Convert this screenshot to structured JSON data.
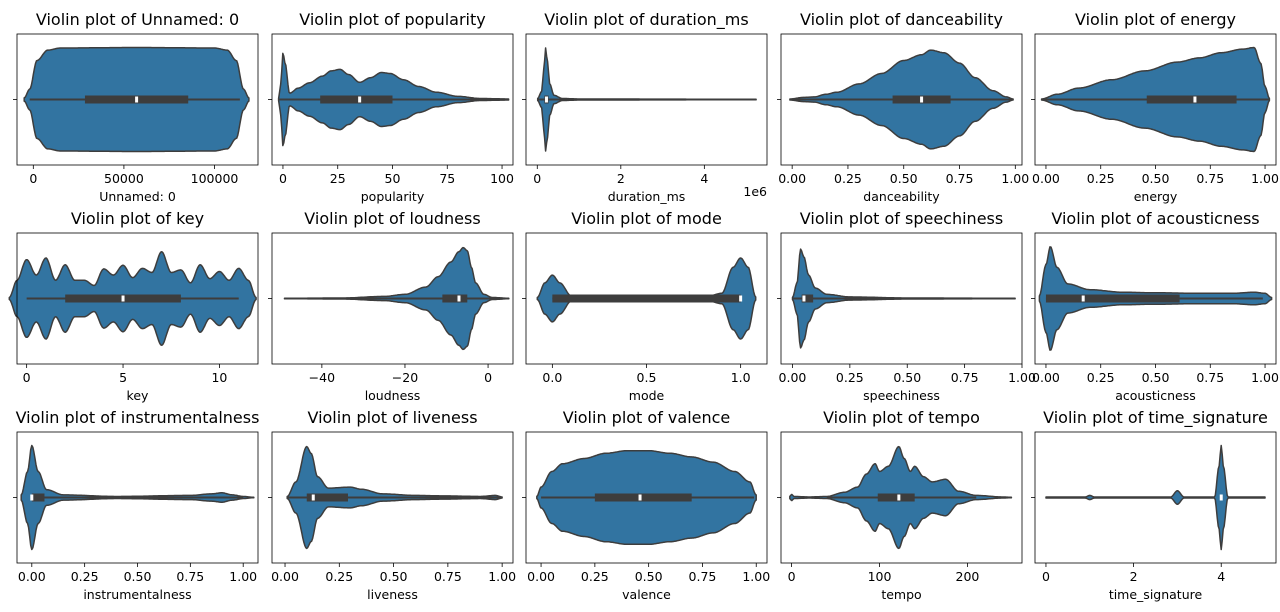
{
  "colors": {
    "violin_fill": "#3274a1",
    "violin_edge": "#3d3d3d",
    "box_fill": "#3d3d3d",
    "median": "#ffffff"
  },
  "chart_data": [
    {
      "type": "violin",
      "title": "Violin plot of Unnamed: 0",
      "xlabel": "Unnamed: 0",
      "xlim": [
        -9000,
        124000
      ],
      "ticks": [
        0,
        50000,
        100000
      ],
      "tick_labels": [
        "0",
        "50000",
        "100000"
      ],
      "whiskers": [
        -2000,
        114000
      ],
      "box": [
        28500,
        85500
      ],
      "median": 57000,
      "profile": [
        [
          -5000,
          0.03
        ],
        [
          -2000,
          0.2
        ],
        [
          2000,
          0.75
        ],
        [
          8000,
          0.95
        ],
        [
          15000,
          0.99
        ],
        [
          57000,
          1.0
        ],
        [
          100000,
          0.99
        ],
        [
          107000,
          0.95
        ],
        [
          112000,
          0.75
        ],
        [
          116000,
          0.2
        ],
        [
          119000,
          0.03
        ]
      ]
    },
    {
      "type": "violin",
      "title": "Violin plot of popularity",
      "xlabel": "popularity",
      "xlim": [
        -5,
        105
      ],
      "ticks": [
        0,
        25,
        50,
        75,
        100
      ],
      "tick_labels": [
        "0",
        "25",
        "50",
        "75",
        "100"
      ],
      "whiskers": [
        -2,
        103
      ],
      "box": [
        17,
        50
      ],
      "median": 35,
      "profile": [
        [
          -2,
          0.02
        ],
        [
          -1,
          0.3
        ],
        [
          0,
          0.9
        ],
        [
          1,
          0.7
        ],
        [
          3,
          0.12
        ],
        [
          7,
          0.22
        ],
        [
          12,
          0.32
        ],
        [
          18,
          0.45
        ],
        [
          22,
          0.55
        ],
        [
          26,
          0.58
        ],
        [
          30,
          0.48
        ],
        [
          35,
          0.33
        ],
        [
          40,
          0.42
        ],
        [
          45,
          0.52
        ],
        [
          49,
          0.5
        ],
        [
          55,
          0.38
        ],
        [
          62,
          0.25
        ],
        [
          70,
          0.14
        ],
        [
          80,
          0.06
        ],
        [
          90,
          0.02
        ],
        [
          103,
          0.01
        ]
      ]
    },
    {
      "type": "violin",
      "title": "Violin plot of duration_ms",
      "xlabel": "duration_ms",
      "offset_text": "1e6",
      "xlim": [
        -0.27,
        5.5
      ],
      "ticks": [
        0,
        2,
        4
      ],
      "tick_labels": [
        "0",
        "2",
        "4"
      ],
      "whiskers": [
        0.01,
        5.24
      ],
      "box": [
        0.17,
        0.27
      ],
      "median": 0.22,
      "profile": [
        [
          0.01,
          0.02
        ],
        [
          0.1,
          0.15
        ],
        [
          0.16,
          0.6
        ],
        [
          0.2,
          0.99
        ],
        [
          0.24,
          0.75
        ],
        [
          0.3,
          0.3
        ],
        [
          0.4,
          0.08
        ],
        [
          0.6,
          0.02
        ],
        [
          1.0,
          0.01
        ],
        [
          5.24,
          0.005
        ]
      ]
    },
    {
      "type": "violin",
      "title": "Violin plot of danceability",
      "xlabel": "danceability",
      "xlim": [
        -0.05,
        1.03
      ],
      "ticks": [
        0.0,
        0.25,
        0.5,
        0.75,
        1.0
      ],
      "tick_labels": [
        "0.00",
        "0.25",
        "0.50",
        "0.75",
        "1.00"
      ],
      "whiskers": [
        -0.01,
        0.99
      ],
      "box": [
        0.45,
        0.71
      ],
      "median": 0.58,
      "profile": [
        [
          -0.01,
          0.01
        ],
        [
          0.05,
          0.04
        ],
        [
          0.1,
          0.05
        ],
        [
          0.15,
          0.1
        ],
        [
          0.2,
          0.14
        ],
        [
          0.3,
          0.3
        ],
        [
          0.4,
          0.5
        ],
        [
          0.5,
          0.75
        ],
        [
          0.58,
          0.86
        ],
        [
          0.62,
          0.95
        ],
        [
          0.68,
          0.9
        ],
        [
          0.75,
          0.7
        ],
        [
          0.82,
          0.42
        ],
        [
          0.9,
          0.17
        ],
        [
          0.96,
          0.05
        ],
        [
          0.99,
          0.01
        ]
      ]
    },
    {
      "type": "violin",
      "title": "Violin plot of energy",
      "xlabel": "energy",
      "xlim": [
        -0.05,
        1.05
      ],
      "ticks": [
        0.0,
        0.25,
        0.5,
        0.75,
        1.0
      ],
      "tick_labels": [
        "0.00",
        "0.25",
        "0.50",
        "0.75",
        "1.00"
      ],
      "whiskers": [
        -0.02,
        1.02
      ],
      "box": [
        0.46,
        0.87
      ],
      "median": 0.68,
      "profile": [
        [
          -0.02,
          0.01
        ],
        [
          0.05,
          0.1
        ],
        [
          0.15,
          0.22
        ],
        [
          0.3,
          0.38
        ],
        [
          0.45,
          0.55
        ],
        [
          0.6,
          0.72
        ],
        [
          0.7,
          0.8
        ],
        [
          0.8,
          0.9
        ],
        [
          0.9,
          0.97
        ],
        [
          0.95,
          1.0
        ],
        [
          0.98,
          0.7
        ],
        [
          1.0,
          0.25
        ],
        [
          1.02,
          0.02
        ]
      ]
    },
    {
      "type": "violin",
      "title": "Violin plot of key",
      "xlabel": "key",
      "xlim": [
        -0.5,
        12
      ],
      "ticks": [
        0,
        5,
        10
      ],
      "tick_labels": [
        "0",
        "5",
        "10"
      ],
      "whiskers": [
        0,
        11
      ],
      "box": [
        2,
        8
      ],
      "median": 5,
      "profile": [
        [
          -0.9,
          0.02
        ],
        [
          -0.5,
          0.35
        ],
        [
          0,
          0.75
        ],
        [
          0.5,
          0.45
        ],
        [
          1,
          0.78
        ],
        [
          1.5,
          0.35
        ],
        [
          2,
          0.65
        ],
        [
          2.5,
          0.35
        ],
        [
          3,
          0.35
        ],
        [
          3.5,
          0.25
        ],
        [
          4,
          0.57
        ],
        [
          4.5,
          0.45
        ],
        [
          5,
          0.64
        ],
        [
          5.5,
          0.4
        ],
        [
          6,
          0.58
        ],
        [
          6.5,
          0.5
        ],
        [
          7,
          0.9
        ],
        [
          7.5,
          0.5
        ],
        [
          8,
          0.55
        ],
        [
          8.5,
          0.3
        ],
        [
          9,
          0.65
        ],
        [
          9.5,
          0.38
        ],
        [
          10,
          0.52
        ],
        [
          10.5,
          0.35
        ],
        [
          11,
          0.58
        ],
        [
          11.5,
          0.35
        ],
        [
          11.9,
          0.02
        ]
      ]
    },
    {
      "type": "violin",
      "title": "Violin plot of loudness",
      "xlabel": "loudness",
      "xlim": [
        -52,
        6
      ],
      "ticks": [
        -40,
        -20,
        0
      ],
      "tick_labels": [
        "−40",
        "−20",
        "0"
      ],
      "whiskers": [
        -49,
        5
      ],
      "box": [
        -11,
        -5
      ],
      "median": -7,
      "profile": [
        [
          -49,
          0.005
        ],
        [
          -35,
          0.01
        ],
        [
          -25,
          0.04
        ],
        [
          -20,
          0.08
        ],
        [
          -15,
          0.22
        ],
        [
          -12,
          0.42
        ],
        [
          -9,
          0.7
        ],
        [
          -7,
          0.9
        ],
        [
          -6,
          0.98
        ],
        [
          -5,
          0.92
        ],
        [
          -4,
          0.6
        ],
        [
          -3,
          0.3
        ],
        [
          -1,
          0.08
        ],
        [
          1,
          0.02
        ],
        [
          5,
          0.005
        ]
      ]
    },
    {
      "type": "violin",
      "title": "Violin plot of mode",
      "xlabel": "mode",
      "xlim": [
        -0.14,
        1.14
      ],
      "ticks": [
        0.0,
        0.5,
        1.0
      ],
      "tick_labels": [
        "0.0",
        "0.5",
        "1.0"
      ],
      "whiskers": [
        0,
        1
      ],
      "box": [
        0,
        1
      ],
      "median": 1,
      "profile": [
        [
          -0.08,
          0.02
        ],
        [
          -0.04,
          0.3
        ],
        [
          0,
          0.45
        ],
        [
          0.04,
          0.3
        ],
        [
          0.1,
          0.05
        ],
        [
          0.2,
          0.01
        ],
        [
          0.8,
          0.01
        ],
        [
          0.9,
          0.1
        ],
        [
          0.96,
          0.6
        ],
        [
          1,
          0.78
        ],
        [
          1.04,
          0.6
        ],
        [
          1.08,
          0.03
        ]
      ]
    },
    {
      "type": "violin",
      "title": "Violin plot of speechiness",
      "xlabel": "speechiness",
      "xlim": [
        -0.05,
        1.0
      ],
      "ticks": [
        0.0,
        0.25,
        0.5,
        0.75,
        1.0
      ],
      "tick_labels": [
        "0.00",
        "0.25",
        "0.50",
        "0.75",
        "1.00"
      ],
      "whiskers": [
        0.0,
        0.97
      ],
      "box": [
        0.04,
        0.09
      ],
      "median": 0.05,
      "profile": [
        [
          0.0,
          0.02
        ],
        [
          0.02,
          0.3
        ],
        [
          0.035,
          0.95
        ],
        [
          0.05,
          0.8
        ],
        [
          0.07,
          0.45
        ],
        [
          0.1,
          0.2
        ],
        [
          0.15,
          0.08
        ],
        [
          0.25,
          0.03
        ],
        [
          0.5,
          0.01
        ],
        [
          0.97,
          0.005
        ]
      ]
    },
    {
      "type": "violin",
      "title": "Violin plot of acousticness",
      "xlabel": "acousticness",
      "xlim": [
        -0.05,
        1.05
      ],
      "ticks": [
        0.0,
        0.25,
        0.5,
        0.75,
        1.0
      ],
      "tick_labels": [
        "0.00",
        "0.25",
        "0.50",
        "0.75",
        "1.00"
      ],
      "whiskers": [
        0.0,
        0.99
      ],
      "box": [
        0.0,
        0.61
      ],
      "median": 0.17,
      "profile": [
        [
          -0.03,
          0.05
        ],
        [
          0,
          0.65
        ],
        [
          0.02,
          1.0
        ],
        [
          0.05,
          0.6
        ],
        [
          0.1,
          0.28
        ],
        [
          0.2,
          0.17
        ],
        [
          0.35,
          0.12
        ],
        [
          0.5,
          0.11
        ],
        [
          0.7,
          0.1
        ],
        [
          0.85,
          0.1
        ],
        [
          0.95,
          0.12
        ],
        [
          1.0,
          0.1
        ],
        [
          1.03,
          0.02
        ]
      ]
    },
    {
      "type": "violin",
      "title": "Violin plot of instrumentalness",
      "xlabel": "instrumentalness",
      "xlim": [
        -0.07,
        1.07
      ],
      "ticks": [
        0.0,
        0.25,
        0.5,
        0.75,
        1.0
      ],
      "tick_labels": [
        "0.00",
        "0.25",
        "0.50",
        "0.75",
        "1.00"
      ],
      "whiskers": [
        0.0,
        1.0
      ],
      "box": [
        0.0,
        0.06
      ],
      "median": 0.0,
      "profile": [
        [
          -0.05,
          0.05
        ],
        [
          -0.02,
          0.5
        ],
        [
          0,
          1.0
        ],
        [
          0.03,
          0.5
        ],
        [
          0.07,
          0.15
        ],
        [
          0.15,
          0.05
        ],
        [
          0.4,
          0.02
        ],
        [
          0.75,
          0.04
        ],
        [
          0.85,
          0.07
        ],
        [
          0.9,
          0.09
        ],
        [
          0.95,
          0.05
        ],
        [
          1.0,
          0.02
        ],
        [
          1.05,
          0.005
        ]
      ]
    },
    {
      "type": "violin",
      "title": "Violin plot of liveness",
      "xlabel": "liveness",
      "xlim": [
        -0.06,
        1.05
      ],
      "ticks": [
        0.0,
        0.25,
        0.5,
        0.75,
        1.0
      ],
      "tick_labels": [
        "0.00",
        "0.25",
        "0.50",
        "0.75",
        "1.00"
      ],
      "whiskers": [
        0.01,
        1.0
      ],
      "box": [
        0.1,
        0.29
      ],
      "median": 0.13,
      "profile": [
        [
          0.01,
          0.02
        ],
        [
          0.05,
          0.3
        ],
        [
          0.1,
          0.98
        ],
        [
          0.12,
          0.85
        ],
        [
          0.15,
          0.4
        ],
        [
          0.2,
          0.18
        ],
        [
          0.3,
          0.2
        ],
        [
          0.35,
          0.16
        ],
        [
          0.45,
          0.07
        ],
        [
          0.6,
          0.04
        ],
        [
          0.75,
          0.03
        ],
        [
          0.9,
          0.02
        ],
        [
          0.97,
          0.04
        ],
        [
          1.0,
          0.01
        ]
      ]
    },
    {
      "type": "violin",
      "title": "Violin plot of valence",
      "xlabel": "valence",
      "xlim": [
        -0.07,
        1.05
      ],
      "ticks": [
        0.0,
        0.25,
        0.5,
        0.75,
        1.0
      ],
      "tick_labels": [
        "0.00",
        "0.25",
        "0.50",
        "0.75",
        "1.00"
      ],
      "whiskers": [
        0.0,
        0.99
      ],
      "box": [
        0.25,
        0.7
      ],
      "median": 0.46,
      "profile": [
        [
          -0.02,
          0.02
        ],
        [
          0.0,
          0.2
        ],
        [
          0.05,
          0.5
        ],
        [
          0.1,
          0.65
        ],
        [
          0.2,
          0.75
        ],
        [
          0.3,
          0.85
        ],
        [
          0.4,
          0.9
        ],
        [
          0.5,
          0.9
        ],
        [
          0.6,
          0.85
        ],
        [
          0.7,
          0.78
        ],
        [
          0.8,
          0.68
        ],
        [
          0.9,
          0.5
        ],
        [
          0.97,
          0.3
        ],
        [
          1.0,
          0.05
        ]
      ]
    },
    {
      "type": "violin",
      "title": "Violin plot of tempo",
      "xlabel": "tempo",
      "xlim": [
        -12,
        262
      ],
      "ticks": [
        0,
        100,
        200
      ],
      "tick_labels": [
        "0",
        "100",
        "200"
      ],
      "whiskers": [
        40,
        210
      ],
      "box": [
        98,
        140
      ],
      "median": 122,
      "profile": [
        [
          -2,
          0.02
        ],
        [
          0,
          0.06
        ],
        [
          3,
          0.02
        ],
        [
          20,
          0.01
        ],
        [
          40,
          0.02
        ],
        [
          60,
          0.1
        ],
        [
          75,
          0.2
        ],
        [
          85,
          0.45
        ],
        [
          95,
          0.65
        ],
        [
          100,
          0.5
        ],
        [
          110,
          0.6
        ],
        [
          122,
          0.98
        ],
        [
          128,
          0.75
        ],
        [
          135,
          0.5
        ],
        [
          140,
          0.6
        ],
        [
          150,
          0.4
        ],
        [
          160,
          0.3
        ],
        [
          175,
          0.35
        ],
        [
          190,
          0.12
        ],
        [
          210,
          0.04
        ],
        [
          240,
          0.01
        ],
        [
          250,
          0.005
        ]
      ]
    },
    {
      "type": "violin",
      "title": "Violin plot of time_signature",
      "xlabel": "time_signature",
      "xlim": [
        -0.25,
        5.25
      ],
      "ticks": [
        0,
        2,
        4
      ],
      "tick_labels": [
        "0",
        "2",
        "4"
      ],
      "whiskers": [
        4,
        4
      ],
      "box": [
        4,
        4
      ],
      "median": 4,
      "profile": [
        [
          0,
          0.01
        ],
        [
          0.9,
          0.01
        ],
        [
          1.0,
          0.04
        ],
        [
          1.1,
          0.01
        ],
        [
          2.85,
          0.01
        ],
        [
          3.0,
          0.13
        ],
        [
          3.15,
          0.01
        ],
        [
          3.85,
          0.01
        ],
        [
          3.95,
          0.6
        ],
        [
          4.0,
          1.0
        ],
        [
          4.05,
          0.6
        ],
        [
          4.15,
          0.01
        ],
        [
          5,
          0.01
        ]
      ]
    }
  ]
}
